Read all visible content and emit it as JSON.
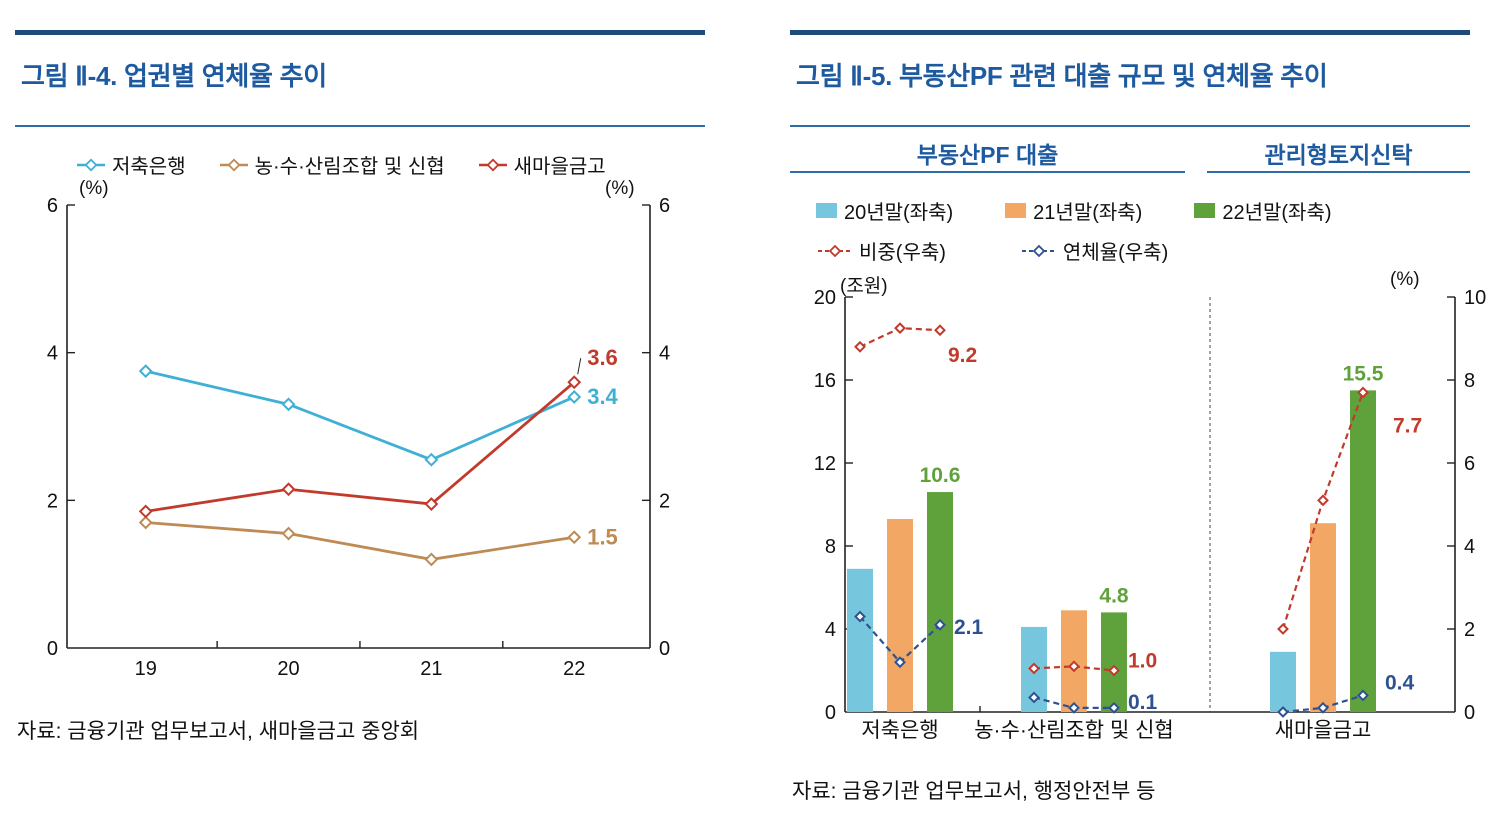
{
  "chart_data": [
    {
      "figure": "II-4",
      "type": "line",
      "title": "그림 Ⅱ-4. 업권별 연체율 추이",
      "unit_left": "(%)",
      "unit_right": "(%)",
      "categories": [
        "19",
        "20",
        "21",
        "22"
      ],
      "ylim": [
        0,
        6
      ],
      "yticks": [
        0,
        2,
        4,
        6
      ],
      "series": [
        {
          "name": "저축은행",
          "color": "#3FB0D5",
          "values": [
            3.75,
            3.3,
            2.55,
            3.4
          ],
          "end_label": "3.4"
        },
        {
          "name": "농·수·산림조합 및 신협",
          "color": "#BE8A55",
          "values": [
            1.7,
            1.55,
            1.2,
            1.5
          ],
          "end_label": "1.5"
        },
        {
          "name": "새마을금고",
          "color": "#C23A2B",
          "values": [
            1.85,
            2.15,
            1.95,
            3.6
          ],
          "end_label": "3.6",
          "leader_line": true
        }
      ],
      "legend_position": "top",
      "grid": false,
      "source": "자료: 금융기관 업무보고서, 새마을금고 중앙회"
    },
    {
      "figure": "II-5",
      "type": "bar",
      "title": "그림 Ⅱ-5. 부동산PF 관련 대출 규모 및 연체율 추이",
      "section_headers": [
        "부동산PF 대출",
        "관리형토지신탁"
      ],
      "unit_left": "(조원)",
      "unit_right": "(%)",
      "categories": [
        "저축은행",
        "농·수·산림조합 및 신협",
        "새마을금고"
      ],
      "ylim_left": [
        0,
        20
      ],
      "yticks_left": [
        0,
        4,
        8,
        12,
        16,
        20
      ],
      "ylim_right": [
        0,
        10
      ],
      "yticks_right": [
        0,
        2,
        4,
        6,
        8,
        10
      ],
      "bar_series": [
        {
          "name": "20년말(좌축)",
          "color": "#76C7DE",
          "values": [
            6.9,
            4.1,
            2.9
          ]
        },
        {
          "name": "21년말(좌축)",
          "color": "#F2A765",
          "values": [
            9.3,
            4.9,
            9.1
          ]
        },
        {
          "name": "22년말(좌축)",
          "color": "#5FA23C",
          "values": [
            10.6,
            4.8,
            15.5
          ],
          "labels": [
            "10.6",
            "4.8",
            "15.5"
          ]
        }
      ],
      "line_series": [
        {
          "name": "비중(우축)",
          "color": "#C23A2B",
          "axis": "right",
          "values": [
            [
              8.8,
              9.25,
              9.2
            ],
            [
              1.05,
              1.1,
              1.0
            ],
            [
              2.0,
              5.1,
              7.7
            ]
          ],
          "labels": [
            "9.2",
            "1.0",
            "7.7"
          ]
        },
        {
          "name": "연체율(우축)",
          "color": "#2E5291",
          "axis": "right",
          "values": [
            [
              2.3,
              1.2,
              2.1
            ],
            [
              0.35,
              0.1,
              0.1
            ],
            [
              0.0,
              0.1,
              0.4
            ]
          ],
          "labels": [
            "2.1",
            "0.1",
            "0.4"
          ]
        }
      ],
      "legend_position": "top",
      "grid": false,
      "source": "자료: 금융기관 업무보고서, 행정안전부 등"
    }
  ]
}
